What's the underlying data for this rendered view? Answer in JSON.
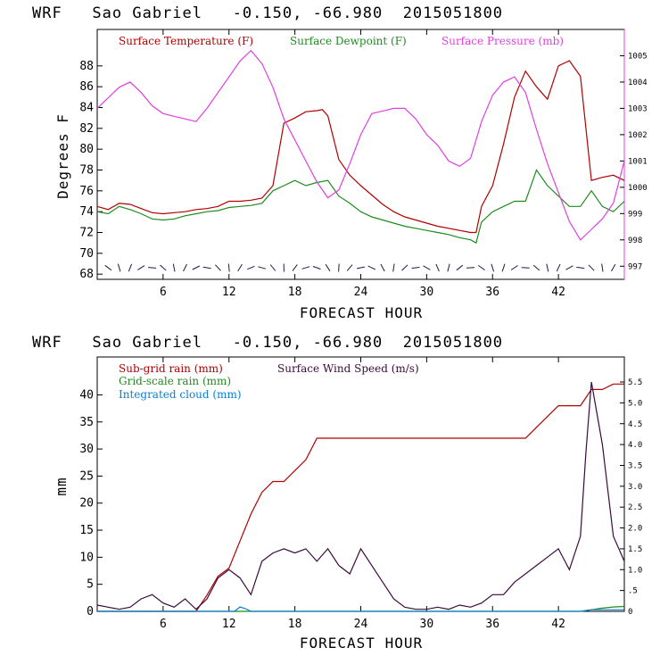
{
  "chart_data": [
    {
      "type": "line",
      "title": "WRF   Sao Gabriel   -0.150, -66.980  2015051800",
      "xlabel": "FORECAST HOUR",
      "ylabel": "Degrees F",
      "xlim": [
        0,
        48
      ],
      "ylim": [
        67.5,
        91.5
      ],
      "y2lim": [
        996.5,
        1006
      ],
      "xticks": [
        "6",
        "12",
        "18",
        "24",
        "30",
        "36",
        "42"
      ],
      "xtick_values": [
        6,
        12,
        18,
        24,
        30,
        36,
        42
      ],
      "yticks": [
        "68",
        "70",
        "72",
        "74",
        "76",
        "78",
        "80",
        "82",
        "84",
        "86",
        "88"
      ],
      "ytick_values": [
        68,
        70,
        72,
        74,
        76,
        78,
        80,
        82,
        84,
        86,
        88
      ],
      "y2ticks": [
        "997",
        "998",
        "999",
        "1000",
        "1001",
        "1002",
        "1003",
        "1004",
        "1005"
      ],
      "y2tick_values": [
        997,
        998,
        999,
        1000,
        1001,
        1002,
        1003,
        1004,
        1005
      ],
      "legend_position": "top",
      "grid": false,
      "series": [
        {
          "name": "Surface Temperature (F)",
          "color": "#b00000",
          "axis": "left",
          "x": [
            0,
            1,
            2,
            3,
            4,
            5,
            6,
            7,
            8,
            9,
            10,
            11,
            12,
            13,
            14,
            15,
            16,
            17,
            18,
            19,
            20,
            20.5,
            21,
            22,
            23,
            24,
            25,
            26,
            27,
            28,
            29,
            30,
            31,
            32,
            33,
            34,
            34.5,
            35,
            36,
            37,
            38,
            39,
            40,
            41,
            42,
            43,
            44,
            45,
            46,
            47,
            48
          ],
          "values": [
            74.5,
            74.2,
            74.8,
            74.7,
            74.3,
            73.9,
            73.8,
            73.9,
            74.0,
            74.2,
            74.3,
            74.5,
            75.0,
            75.0,
            75.1,
            75.3,
            76.5,
            82.5,
            83.0,
            83.6,
            83.7,
            83.8,
            83.2,
            79.0,
            77.5,
            76.5,
            75.6,
            74.7,
            74.0,
            73.5,
            73.2,
            72.9,
            72.6,
            72.4,
            72.2,
            72.0,
            72.0,
            74.5,
            76.5,
            80.5,
            85.0,
            87.5,
            86.0,
            84.8,
            88.0,
            88.5,
            87.0,
            77.0,
            77.3,
            77.5,
            77.0
          ]
        },
        {
          "name": "Surface Dewpoint (F)",
          "color": "#1f8a1f",
          "axis": "left",
          "x": [
            0,
            1,
            2,
            3,
            4,
            5,
            6,
            7,
            8,
            9,
            10,
            11,
            12,
            13,
            14,
            15,
            16,
            17,
            18,
            19,
            20,
            21,
            22,
            23,
            24,
            25,
            26,
            27,
            28,
            29,
            30,
            31,
            32,
            33,
            34,
            34.5,
            35,
            36,
            37,
            38,
            39,
            40,
            41,
            42,
            43,
            44,
            45,
            46,
            47,
            48
          ],
          "values": [
            74.0,
            73.8,
            74.5,
            74.2,
            73.8,
            73.3,
            73.2,
            73.3,
            73.6,
            73.8,
            74.0,
            74.1,
            74.4,
            74.5,
            74.6,
            74.8,
            76.0,
            76.5,
            77.0,
            76.5,
            76.8,
            77.0,
            75.5,
            74.8,
            74.0,
            73.5,
            73.2,
            72.9,
            72.6,
            72.4,
            72.2,
            72.0,
            71.8,
            71.5,
            71.3,
            71.0,
            73.0,
            74.0,
            74.5,
            75.0,
            75.0,
            78.0,
            76.5,
            75.5,
            74.5,
            74.5,
            76.0,
            74.5,
            74.0,
            75.0
          ]
        },
        {
          "name": "Surface Pressure (mb)",
          "color": "#e040e0",
          "axis": "right",
          "x": [
            0,
            1,
            2,
            3,
            4,
            5,
            6,
            7,
            8,
            9,
            10,
            11,
            12,
            13,
            14,
            15,
            16,
            17,
            18,
            19,
            20,
            21,
            22,
            23,
            24,
            25,
            26,
            27,
            28,
            29,
            30,
            31,
            32,
            33,
            34,
            35,
            36,
            37,
            38,
            39,
            40,
            41,
            42,
            43,
            44,
            45,
            46,
            47,
            48
          ],
          "values": [
            1003.0,
            1003.4,
            1003.8,
            1004.0,
            1003.6,
            1003.1,
            1002.8,
            1002.7,
            1002.6,
            1002.5,
            1003.0,
            1003.6,
            1004.2,
            1004.8,
            1005.2,
            1004.7,
            1003.8,
            1002.6,
            1001.8,
            1001.0,
            1000.2,
            999.6,
            999.9,
            1000.9,
            1002.0,
            1002.8,
            1002.9,
            1003.0,
            1003.0,
            1002.6,
            1002.0,
            1001.6,
            1001.0,
            1000.8,
            1001.1,
            1002.5,
            1003.5,
            1004.0,
            1004.2,
            1003.6,
            1002.2,
            1000.9,
            999.8,
            998.7,
            998.0,
            998.4,
            998.8,
            999.4,
            1001.0
          ]
        }
      ],
      "wind_barb_row": "wind barbs along bottom of panel"
    },
    {
      "type": "line",
      "title": "WRF   Sao Gabriel   -0.150, -66.980  2015051800",
      "xlabel": "FORECAST HOUR",
      "ylabel": "mm",
      "xlim": [
        0,
        48
      ],
      "ylim": [
        0,
        47
      ],
      "y2lim": [
        0,
        6.1
      ],
      "xticks": [
        "6",
        "12",
        "18",
        "24",
        "30",
        "36",
        "42"
      ],
      "xtick_values": [
        6,
        12,
        18,
        24,
        30,
        36,
        42
      ],
      "yticks": [
        "0",
        "5",
        "10",
        "15",
        "20",
        "25",
        "30",
        "35",
        "40"
      ],
      "ytick_values": [
        0,
        5,
        10,
        15,
        20,
        25,
        30,
        35,
        40
      ],
      "y2ticks": [
        "0",
        ".5",
        "1.0",
        "1.5",
        "2.0",
        "2.5",
        "3.0",
        "3.5",
        "4.0",
        "4.5",
        "5.0",
        "5.5"
      ],
      "y2tick_values": [
        0,
        0.5,
        1.0,
        1.5,
        2.0,
        2.5,
        3.0,
        3.5,
        4.0,
        4.5,
        5.0,
        5.5
      ],
      "legend_position": "top-left",
      "grid": false,
      "series": [
        {
          "name": "Sub-grid rain (mm)",
          "color": "#b00000",
          "axis": "left",
          "x": [
            0,
            9,
            10,
            11,
            12,
            13,
            14,
            15,
            16,
            17,
            18,
            19,
            20,
            21,
            22,
            24,
            30,
            36,
            39,
            40,
            41,
            42,
            43,
            44,
            45,
            46,
            47,
            48
          ],
          "values": [
            0,
            0,
            3,
            6.5,
            8,
            13,
            18,
            22,
            24,
            24,
            26,
            28,
            32,
            32,
            32,
            32,
            32,
            32,
            32,
            34,
            36,
            38,
            38,
            38,
            41,
            41,
            42,
            42
          ]
        },
        {
          "name": "Grid-scale rain (mm)",
          "color": "#1f8a1f",
          "axis": "left",
          "x": [
            0,
            44,
            45,
            46,
            47,
            48
          ],
          "values": [
            0,
            0,
            0.3,
            0.6,
            0.8,
            0.9
          ]
        },
        {
          "name": "Integrated cloud (mm)",
          "color": "#0a7fd0",
          "axis": "left",
          "x": [
            0,
            12.5,
            13,
            13.5,
            14,
            20,
            44,
            45,
            48
          ],
          "values": [
            0,
            0,
            0.8,
            0.5,
            0,
            0,
            0,
            0.3,
            0.3
          ]
        },
        {
          "name": "Surface Wind Speed (m/s)",
          "color": "#3a0a3a",
          "axis": "right",
          "x": [
            0,
            1,
            2,
            3,
            4,
            5,
            6,
            7,
            8,
            9,
            10,
            11,
            12,
            13,
            14,
            15,
            16,
            17,
            18,
            19,
            20,
            21,
            22,
            23,
            24,
            25,
            26,
            27,
            28,
            29,
            30,
            31,
            32,
            33,
            34,
            35,
            36,
            37,
            38,
            39,
            40,
            41,
            42,
            43,
            44,
            44.5,
            45,
            46,
            47,
            48
          ],
          "values": [
            0.15,
            0.1,
            0.05,
            0.1,
            0.3,
            0.4,
            0.2,
            0.1,
            0.3,
            0.05,
            0.3,
            0.8,
            1.0,
            0.8,
            0.4,
            1.2,
            1.4,
            1.5,
            1.4,
            1.5,
            1.2,
            1.5,
            1.1,
            0.9,
            1.5,
            1.1,
            0.7,
            0.3,
            0.1,
            0.05,
            0.05,
            0.1,
            0.05,
            0.15,
            0.1,
            0.2,
            0.4,
            0.4,
            0.7,
            0.9,
            1.1,
            1.3,
            1.5,
            1.0,
            1.8,
            3.8,
            5.5,
            4.0,
            1.8,
            1.2
          ]
        }
      ]
    }
  ]
}
